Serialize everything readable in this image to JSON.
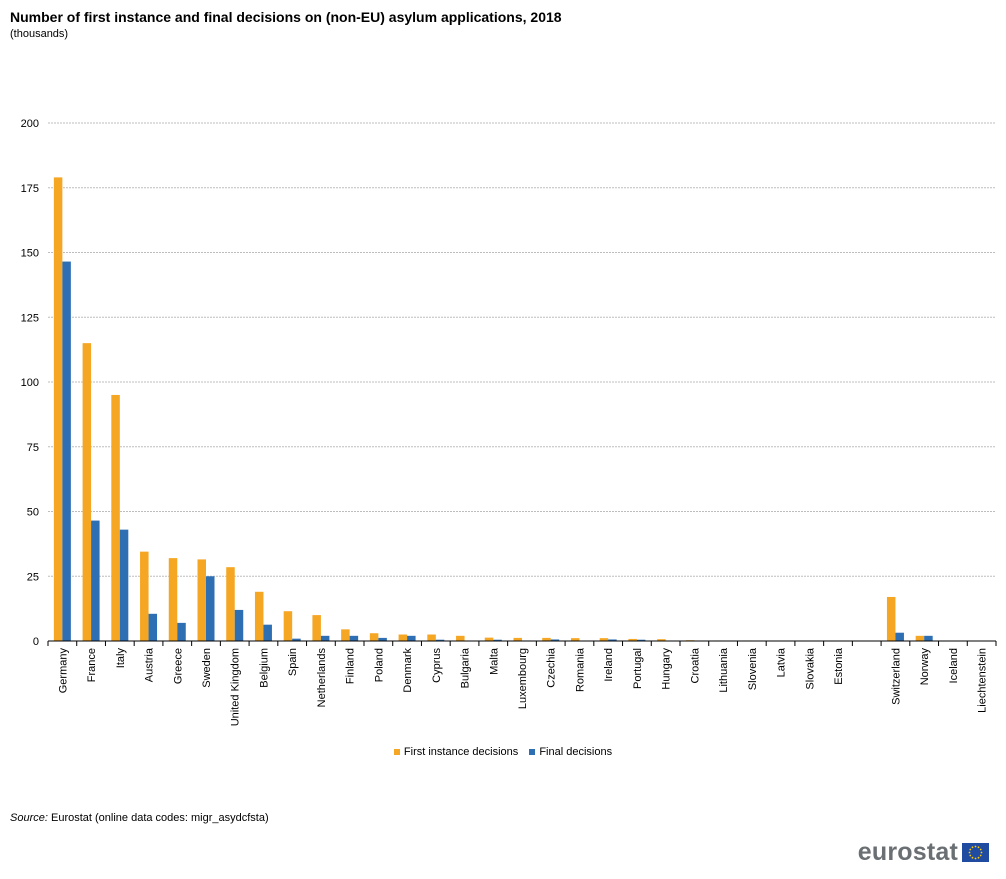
{
  "title": "Number of first instance and final decisions on (non-EU) asylum applications, 2018",
  "subtitle": "(thousands)",
  "colors": {
    "first": "#f5a623",
    "final": "#2e6fb4",
    "grid": "#bdbdbd",
    "axis": "#000000",
    "logo_text": "#6a6f73",
    "eu_blue": "#1f4ba0",
    "eu_gold": "#ffcc00"
  },
  "chart_data": {
    "type": "bar",
    "categories": [
      "Germany",
      "France",
      "Italy",
      "Austria",
      "Greece",
      "Sweden",
      "United Kingdom",
      "Belgium",
      "Spain",
      "Netherlands",
      "Finland",
      "Poland",
      "Denmark",
      "Cyprus",
      "Bulgaria",
      "Malta",
      "Luxembourg",
      "Czechia",
      "Romania",
      "Ireland",
      "Portugal",
      "Hungary",
      "Croatia",
      "Lithuania",
      "Slovenia",
      "Latvia",
      "Slovakia",
      "Estonia",
      "",
      "Switzerland",
      "Norway",
      "Iceland",
      "Liechtenstein"
    ],
    "series": [
      {
        "name": "First instance decisions",
        "values": [
          179,
          115,
          95,
          34.5,
          32,
          31.5,
          28.5,
          19,
          11.5,
          10,
          4.5,
          3,
          2.5,
          2.5,
          2,
          1.3,
          1.2,
          1.2,
          1.1,
          1.1,
          0.8,
          0.7,
          0.3,
          0.2,
          0.2,
          0.1,
          0.1,
          0.05,
          null,
          17,
          2,
          0.1,
          0.1
        ]
      },
      {
        "name": "Final decisions",
        "values": [
          146.5,
          46.5,
          43,
          10.5,
          7,
          25,
          12,
          6.3,
          0.9,
          2,
          2,
          1.2,
          2,
          0.5,
          0.1,
          0.5,
          0.2,
          0.6,
          0.1,
          0.6,
          0.5,
          0.1,
          0.1,
          0,
          0.1,
          0,
          0,
          0,
          null,
          3.2,
          2,
          0,
          0
        ]
      }
    ],
    "yticks": [
      0,
      25,
      50,
      75,
      100,
      125,
      150,
      175,
      200
    ],
    "ylim": [
      0,
      200
    ],
    "grid": true,
    "legend_position": "bottom-center"
  },
  "legend": [
    {
      "label": "First instance decisions"
    },
    {
      "label": "Final decisions"
    }
  ],
  "source": {
    "label": "Source:",
    "text": "Eurostat (online data codes: migr_asydcfsta)"
  },
  "logo": {
    "text": "eurostat",
    "flag_icon": "eu-flag-icon"
  }
}
